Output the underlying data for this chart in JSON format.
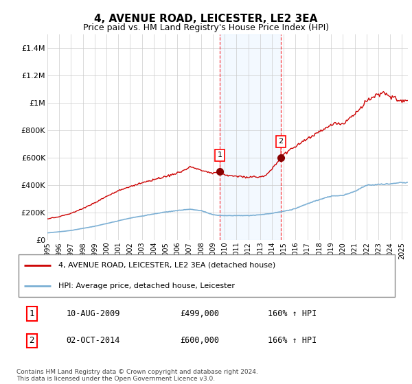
{
  "title": "4, AVENUE ROAD, LEICESTER, LE2 3EA",
  "subtitle": "Price paid vs. HM Land Registry's House Price Index (HPI)",
  "title_fontsize": 11,
  "subtitle_fontsize": 9,
  "xlim": [
    1995.0,
    2025.5
  ],
  "ylim": [
    0,
    1500000
  ],
  "yticks": [
    0,
    200000,
    400000,
    600000,
    800000,
    1000000,
    1200000,
    1400000
  ],
  "ytick_labels": [
    "£0",
    "£200K",
    "£400K",
    "£600K",
    "£800K",
    "£1M",
    "£1.2M",
    "£1.4M"
  ],
  "sale1_x": 2009.6,
  "sale1_y": 499000,
  "sale1_label": "1",
  "sale2_x": 2014.75,
  "sale2_y": 600000,
  "sale2_label": "2",
  "annotation1_date": "10-AUG-2009",
  "annotation1_price": "£499,000",
  "annotation1_hpi": "160% ↑ HPI",
  "annotation2_date": "02-OCT-2014",
  "annotation2_price": "£600,000",
  "annotation2_hpi": "166% ↑ HPI",
  "line_color_property": "#cc0000",
  "line_color_hpi": "#7bafd4",
  "legend_label_property": "4, AVENUE ROAD, LEICESTER, LE2 3EA (detached house)",
  "legend_label_hpi": "HPI: Average price, detached house, Leicester",
  "footer": "Contains HM Land Registry data © Crown copyright and database right 2024.\nThis data is licensed under the Open Government Licence v3.0.",
  "xticks": [
    1995,
    1996,
    1997,
    1998,
    1999,
    2000,
    2001,
    2002,
    2003,
    2004,
    2005,
    2006,
    2007,
    2008,
    2009,
    2010,
    2011,
    2012,
    2013,
    2014,
    2015,
    2016,
    2017,
    2018,
    2019,
    2020,
    2021,
    2022,
    2023,
    2024,
    2025
  ],
  "bg_shade_color": "#ddeeff",
  "bg_shade_alpha": 0.35
}
